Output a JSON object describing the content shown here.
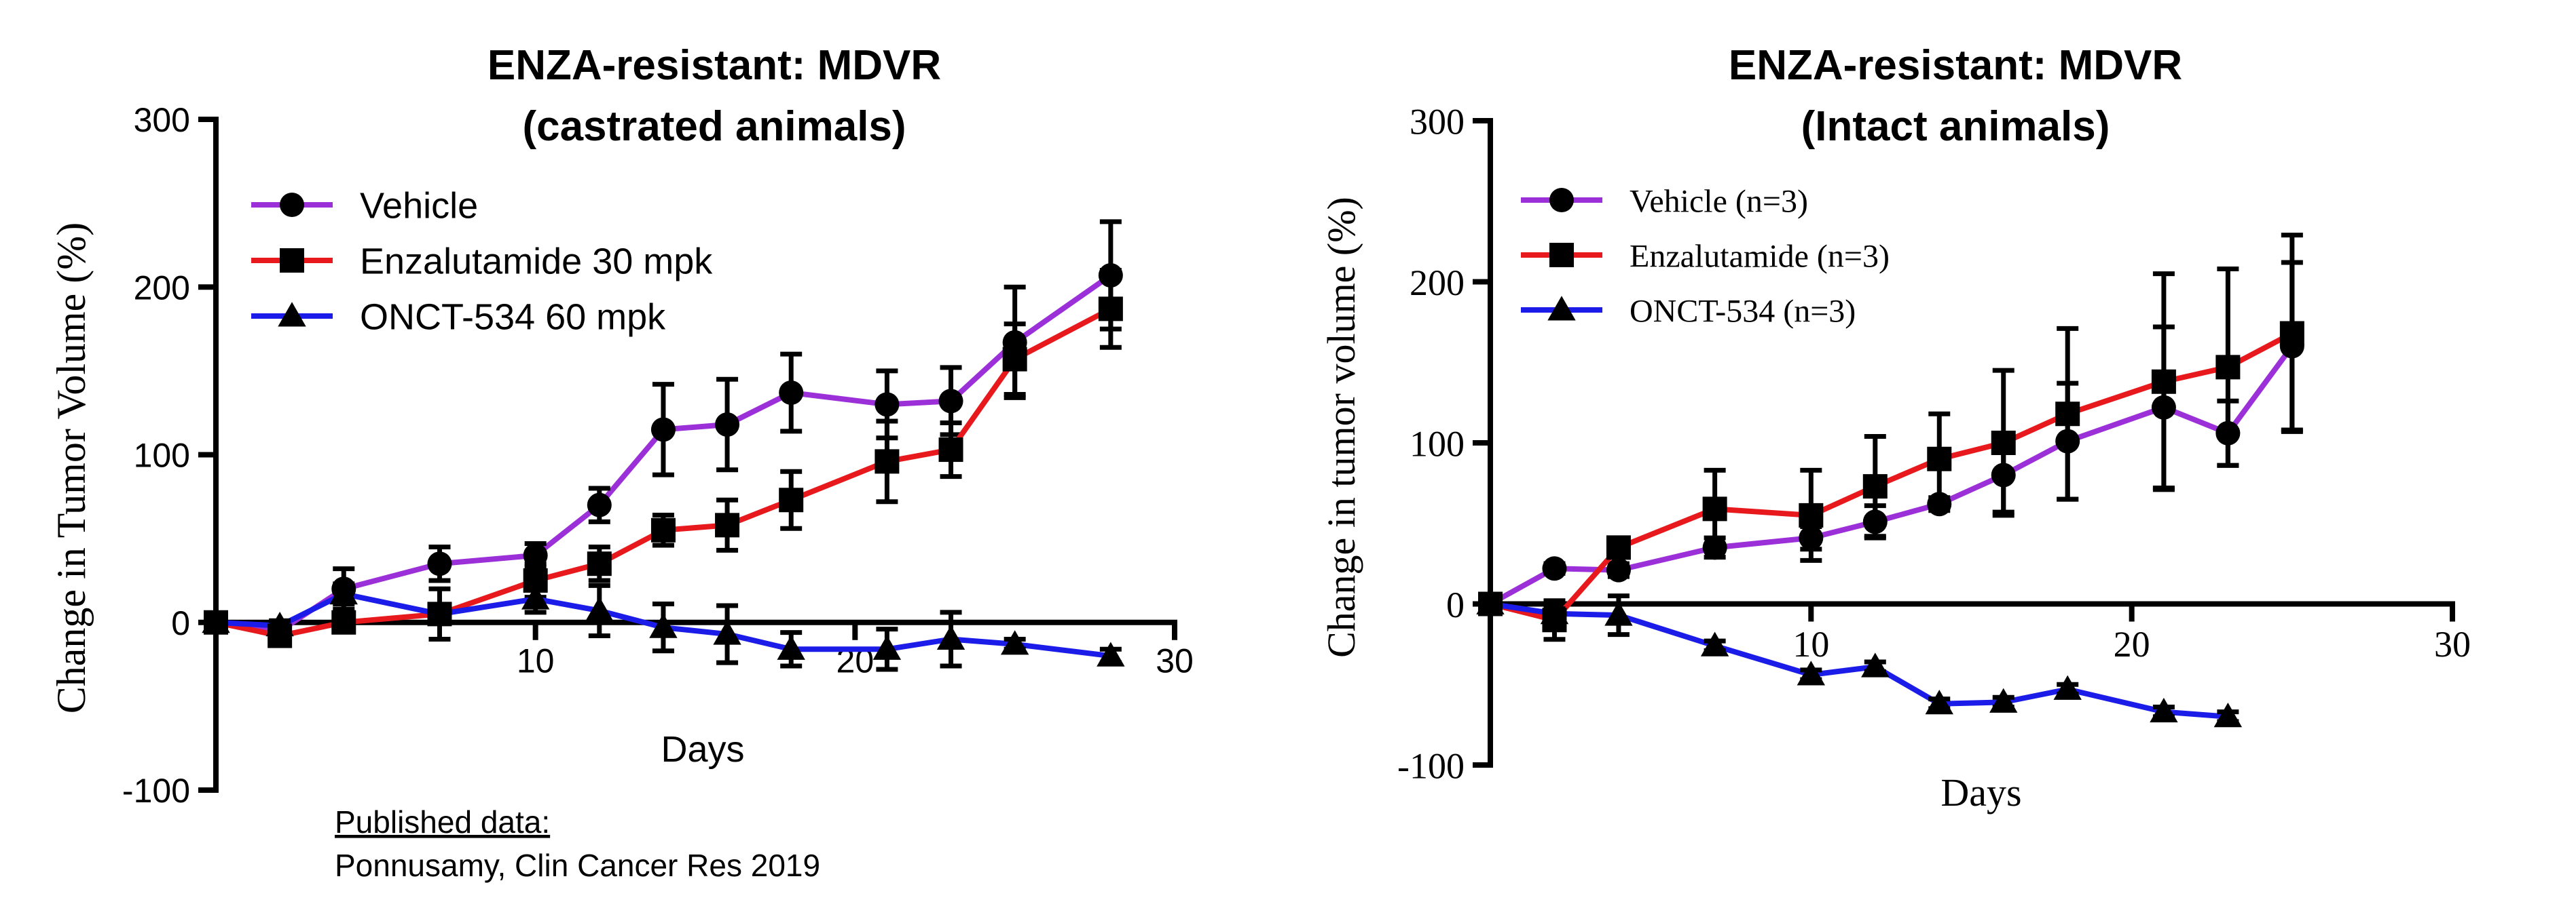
{
  "citation": {
    "label": "Published data:",
    "text": "Ponnusamy, Clin Cancer Res 2019"
  },
  "chart_data": [
    {
      "type": "line",
      "title": "ENZA-resistant: MDVR",
      "subtitle": "(castrated animals)",
      "xlabel": "Days",
      "ylabel": "Change in Tumor Volume (%)",
      "xlim": [
        0,
        30
      ],
      "ylim": [
        -100,
        300
      ],
      "xticks": [
        10,
        20,
        30
      ],
      "yticks": [
        300,
        200,
        100,
        0,
        -100
      ],
      "x_axis_at_y": 0,
      "legend_position": "top-left",
      "series": [
        {
          "name": "Vehicle",
          "color": "#9b30d9",
          "marker": "circle",
          "x": [
            0,
            2,
            4,
            7,
            10,
            12,
            14,
            16,
            18,
            21,
            23,
            25,
            28
          ],
          "values": [
            0,
            -5,
            20,
            35,
            40,
            70,
            115,
            118,
            137,
            130,
            132,
            167,
            207
          ],
          "error": [
            0,
            4,
            12,
            10,
            7,
            10,
            27,
            27,
            23,
            20,
            20,
            33,
            32
          ]
        },
        {
          "name": "Enzalutamide 30 mpk",
          "color": "#e8191d",
          "marker": "square",
          "x": [
            0,
            2,
            4,
            7,
            10,
            12,
            14,
            16,
            18,
            21,
            23,
            25,
            28
          ],
          "values": [
            0,
            -8,
            0,
            5,
            25,
            35,
            55,
            58,
            73,
            96,
            103,
            157,
            187
          ],
          "error": [
            0,
            4,
            5,
            15,
            10,
            10,
            9,
            15,
            17,
            24,
            16,
            21,
            23
          ]
        },
        {
          "name": "ONCT-534 60 mpk",
          "color": "#1c1ce8",
          "marker": "triangle",
          "x": [
            0,
            2,
            4,
            7,
            10,
            12,
            14,
            16,
            18,
            21,
            23,
            25,
            28
          ],
          "values": [
            0,
            -2,
            17,
            5,
            14,
            7,
            -3,
            -7,
            -16,
            -16,
            -10,
            -13,
            -20
          ],
          "error": [
            0,
            3,
            6,
            4,
            8,
            15,
            14,
            17,
            10,
            12,
            16,
            3,
            4
          ]
        }
      ]
    },
    {
      "type": "line",
      "title": "ENZA-resistant: MDVR",
      "subtitle": "(Intact animals)",
      "xlabel": "Days",
      "ylabel": "Change in tumor volume (%)",
      "xlim": [
        0,
        30
      ],
      "ylim": [
        -100,
        300
      ],
      "xticks": [
        10,
        20,
        30
      ],
      "yticks": [
        300,
        200,
        100,
        0,
        -100
      ],
      "x_axis_at_y": 0,
      "legend_position": "top-left",
      "series": [
        {
          "name": "Vehicle (n=3)",
          "color": "#9b30d9",
          "marker": "circle",
          "x": [
            0,
            2,
            4,
            7,
            10,
            12,
            14,
            16,
            18,
            21,
            23,
            25
          ],
          "values": [
            0,
            22,
            21,
            35,
            41,
            51,
            62,
            80,
            101,
            122,
            106,
            160
          ],
          "error": [
            0,
            3,
            4,
            6,
            7,
            10,
            4,
            23,
            36,
            50,
            20,
            52
          ]
        },
        {
          "name": "Enzalutamide (n=3)",
          "color": "#e8191d",
          "marker": "square",
          "x": [
            0,
            2,
            4,
            7,
            10,
            12,
            14,
            16,
            18,
            21,
            23,
            25
          ],
          "values": [
            0,
            -10,
            35,
            59,
            55,
            73,
            90,
            100,
            118,
            138,
            147,
            168
          ],
          "error": [
            0,
            12,
            6,
            24,
            28,
            31,
            28,
            45,
            53,
            67,
            61,
            61
          ]
        },
        {
          "name": "ONCT-534 (n=3)",
          "color": "#1c1ce8",
          "marker": "triangle",
          "x": [
            0,
            2,
            4,
            7,
            10,
            12,
            14,
            16,
            18,
            21,
            23
          ],
          "values": [
            0,
            -6,
            -7,
            -26,
            -44,
            -39,
            -62,
            -61,
            -53,
            -67,
            -70
          ],
          "error": [
            0,
            3,
            12,
            3,
            3,
            3,
            3,
            3,
            3,
            3,
            3
          ]
        }
      ]
    }
  ]
}
